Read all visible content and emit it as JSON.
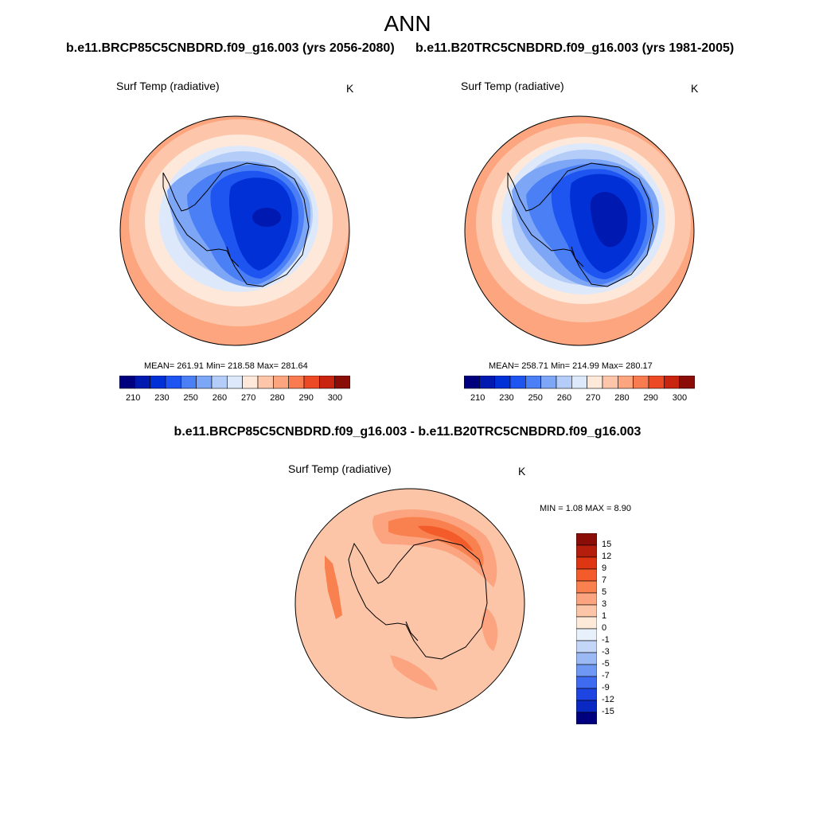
{
  "title": "ANN",
  "panels": [
    {
      "case": "b.e11.BRCP85C5CNBDRD.f09_g16.003 (yrs 2056-2080)",
      "variable": "Surf Temp (radiative)",
      "units": "K",
      "stats": "MEAN= 261.91  Min= 218.58  Max= 281.64"
    },
    {
      "case": "b.e11.B20TRC5CNBDRD.f09_g16.003 (yrs 1981-2005)",
      "variable": "Surf Temp (radiative)",
      "units": "K",
      "stats": "MEAN= 258.71  Min= 214.99  Max= 280.17"
    }
  ],
  "difference": {
    "title": "b.e11.BRCP85C5CNBDRD.f09_g16.003 - b.e11.B20TRC5CNBDRD.f09_g16.003",
    "variable": "Surf Temp (radiative)",
    "units": "K",
    "stats": "MIN =   1.08 MAX =   8.90"
  },
  "abs_colorbar": {
    "colors": [
      "#00007f",
      "#0019b0",
      "#0030d6",
      "#1e55f0",
      "#4a7ff5",
      "#7ea6f7",
      "#b3cdf8",
      "#dde9fb",
      "#fee8da",
      "#fdc6aa",
      "#fca57f",
      "#f97c50",
      "#ec4a25",
      "#c82410",
      "#8b0d08"
    ],
    "tick_labels": [
      "210",
      "230",
      "250",
      "260",
      "270",
      "280",
      "290",
      "300"
    ]
  },
  "diff_colorbar": {
    "colors": [
      "#8b0d08",
      "#b51d0c",
      "#de3512",
      "#f45b2a",
      "#f9814f",
      "#fba47f",
      "#fdc5a8",
      "#feead9",
      "#e8f0fb",
      "#c3d6f7",
      "#9bbaf5",
      "#6e98f3",
      "#3f6bf0",
      "#1e45e2",
      "#0a28c2",
      "#00007f"
    ],
    "tick_labels": [
      "15",
      "12",
      "9",
      "7",
      "5",
      "3",
      "1",
      "0",
      "-1",
      "-3",
      "-5",
      "-7",
      "-9",
      "-12",
      "-15"
    ]
  }
}
